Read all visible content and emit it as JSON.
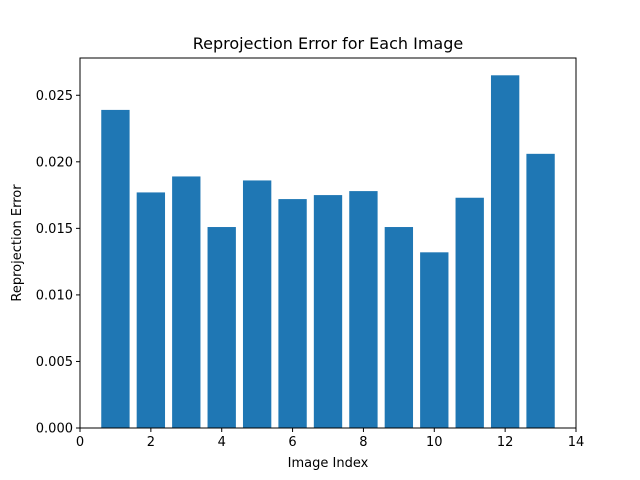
{
  "chart_data": {
    "type": "bar",
    "title": "Reprojection Error for Each Image",
    "xlabel": "Image Index",
    "ylabel": "Reprojection Error",
    "x": [
      1,
      2,
      3,
      4,
      5,
      6,
      7,
      8,
      9,
      10,
      11,
      12,
      13
    ],
    "values": [
      0.0239,
      0.0177,
      0.0189,
      0.0151,
      0.0186,
      0.0172,
      0.0175,
      0.0178,
      0.0151,
      0.0132,
      0.0173,
      0.0265,
      0.0206
    ],
    "xlim": [
      0,
      14
    ],
    "ylim": [
      0,
      0.0278
    ],
    "xticks": [
      0,
      2,
      4,
      6,
      8,
      10,
      12,
      14
    ],
    "xtick_labels": [
      "0",
      "2",
      "4",
      "6",
      "8",
      "10",
      "12",
      "14"
    ],
    "yticks": [
      0,
      0.005,
      0.01,
      0.015,
      0.02,
      0.025
    ],
    "ytick_labels": [
      "0.000",
      "0.005",
      "0.010",
      "0.015",
      "0.020",
      "0.025"
    ],
    "bar_width": 0.8,
    "color": "#1f77b4",
    "grid": false,
    "legend": "none"
  }
}
